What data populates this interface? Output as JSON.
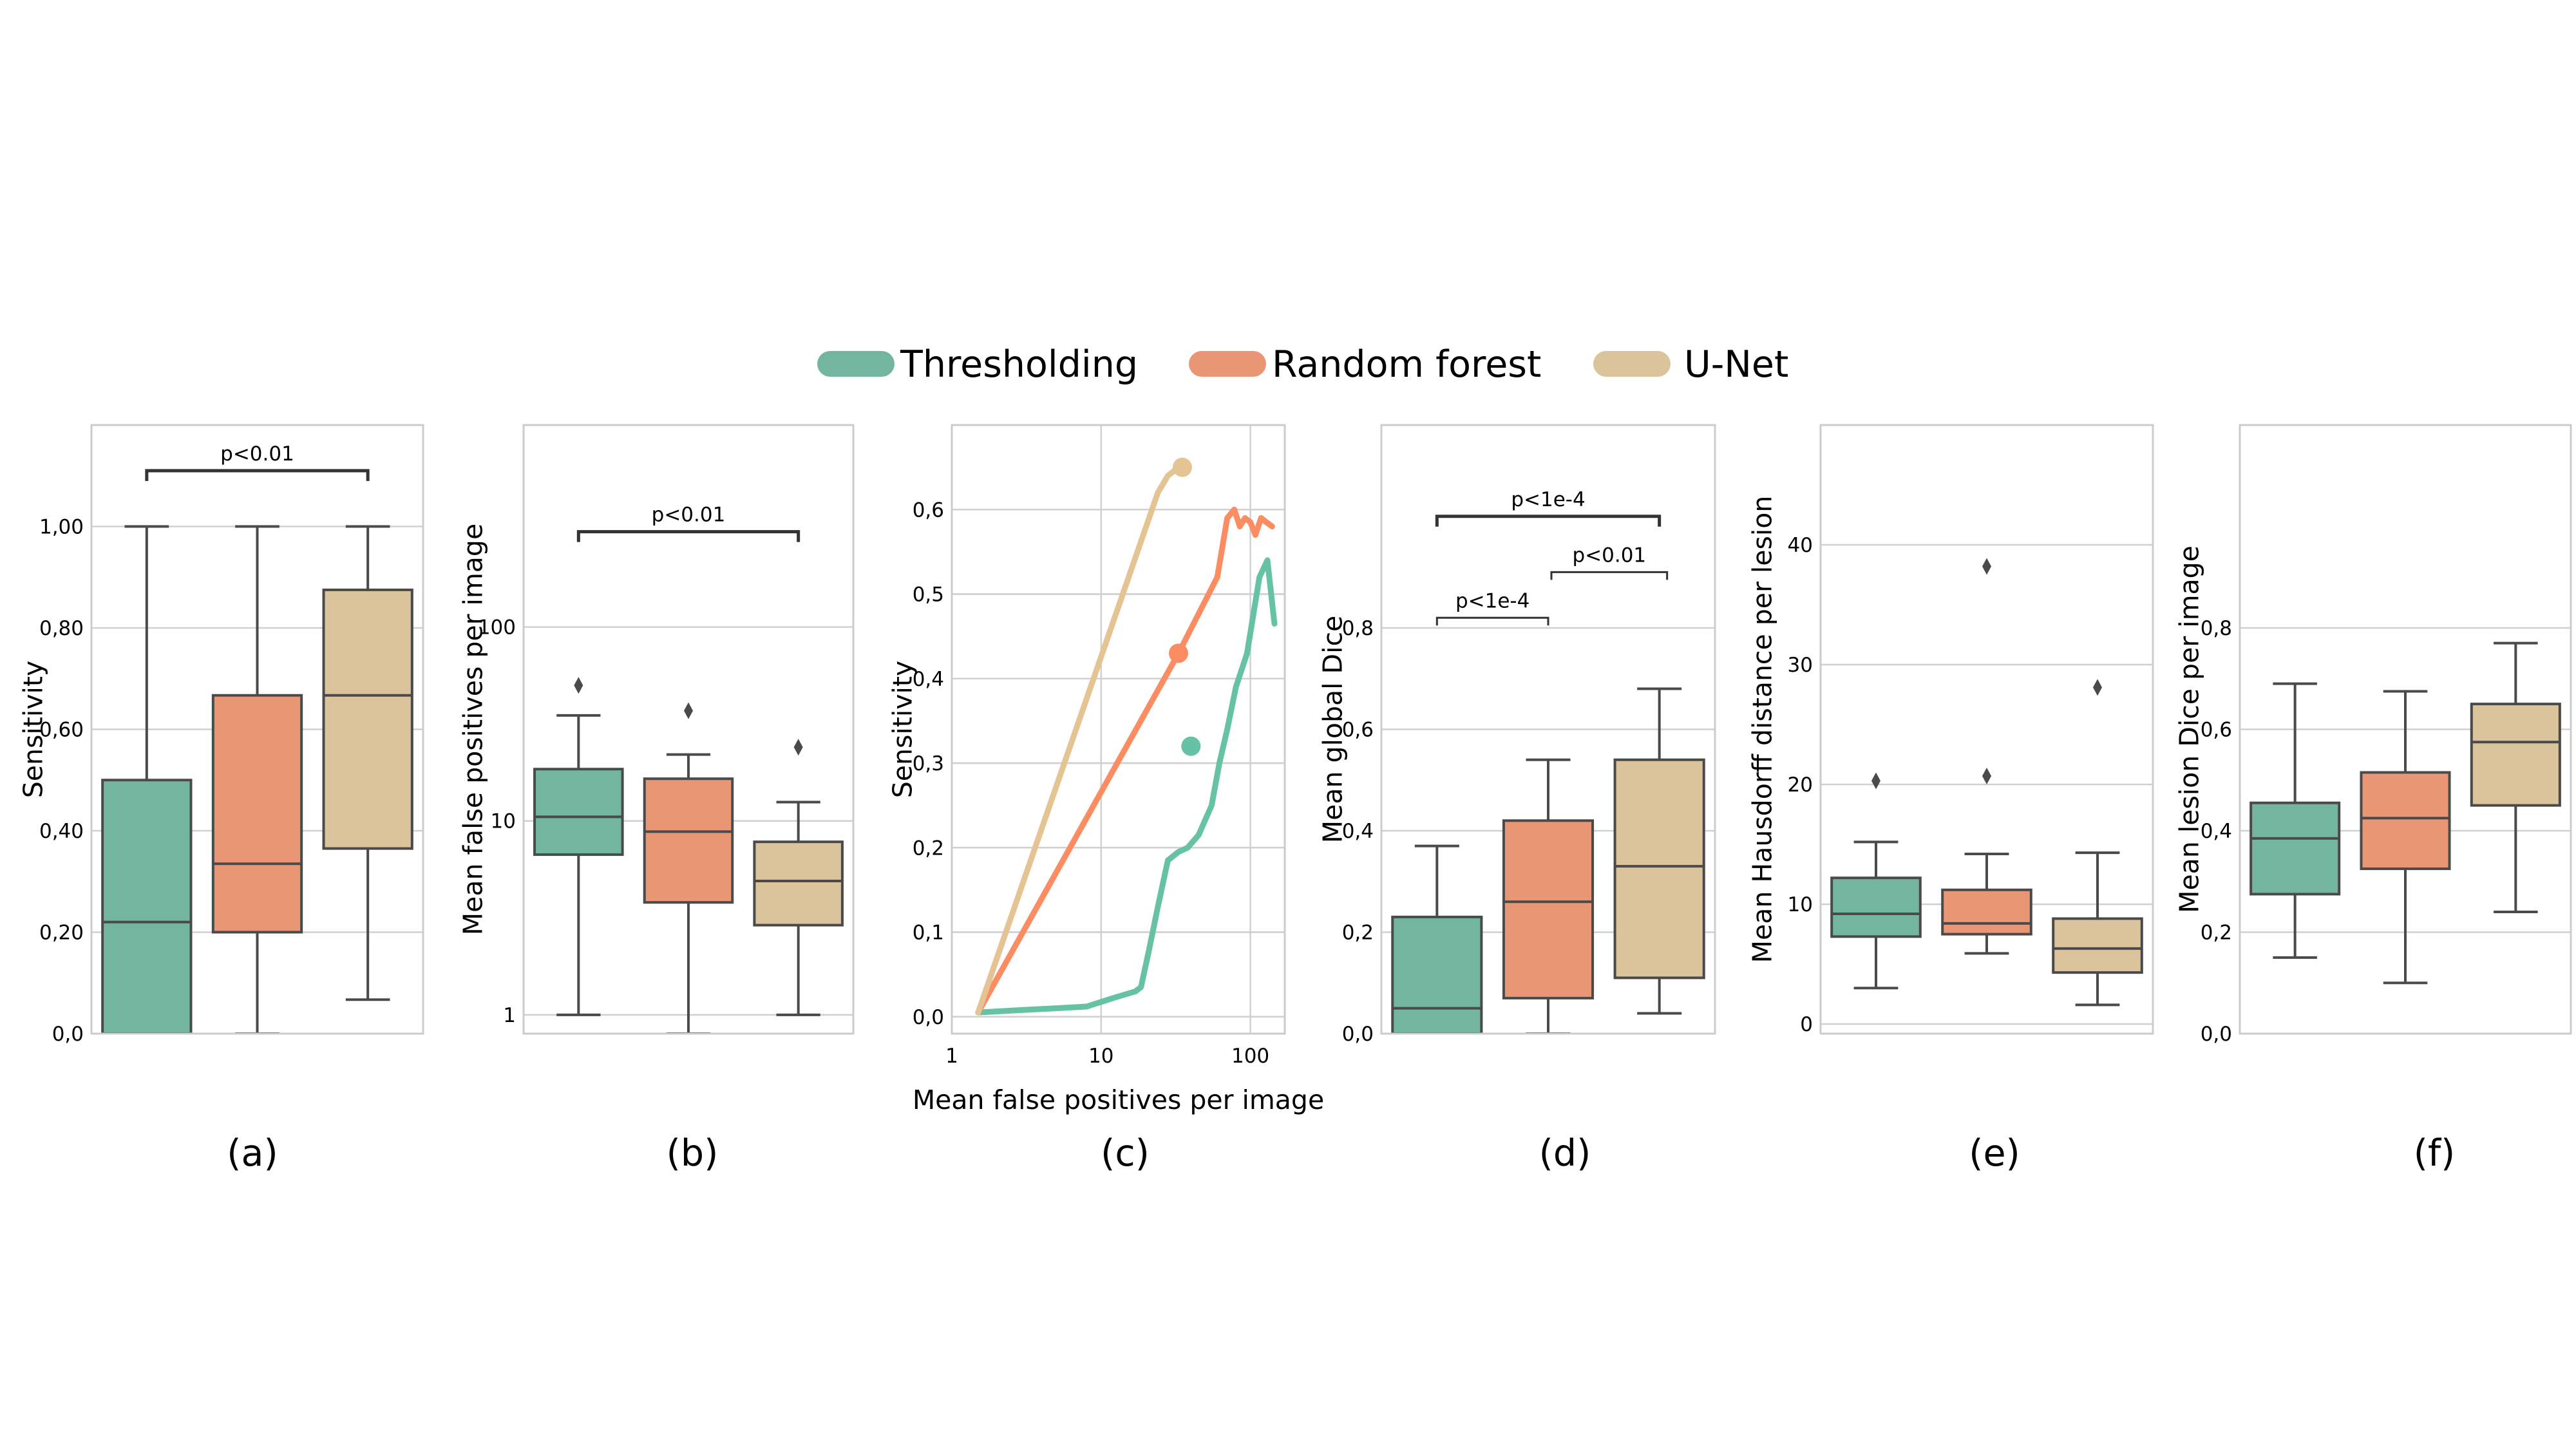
{
  "colors": {
    "Thresholding": "#72b6a0",
    "Random forest": "#e99675",
    "U-Net": "#dbc39b",
    "Thresholding_line": "#66c2a5",
    "Random forest_line": "#fc8d62",
    "U-Net_line": "#e5c494"
  },
  "legend": {
    "placement": "top-center",
    "entries": [
      "Thresholding",
      "Random forest",
      "U-Net"
    ]
  },
  "chart_data": [
    {
      "id": "a",
      "type": "box",
      "panel_label": "(a)",
      "ylabel": "Sensitivity",
      "ylim": [
        0.0,
        1.2
      ],
      "yscale": "linear",
      "yticks": [
        0.0,
        0.2,
        0.4,
        0.6,
        0.8,
        1.0
      ],
      "ytick_labels": [
        "0,0",
        "0,20",
        "0,40",
        "0,60",
        "0,80",
        "1,00"
      ],
      "grid": true,
      "boxes": [
        {
          "name": "Thresholding",
          "q1": 0.0,
          "median": 0.22,
          "q3": 0.5,
          "whislo": 0.0,
          "whishi": 1.0,
          "fliers": []
        },
        {
          "name": "Random forest",
          "q1": 0.2,
          "median": 0.335,
          "q3": 0.667,
          "whislo": 0.0,
          "whishi": 1.0,
          "fliers": []
        },
        {
          "name": "U-Net",
          "q1": 0.365,
          "median": 0.667,
          "q3": 0.875,
          "whislo": 0.067,
          "whishi": 1.0,
          "fliers": []
        }
      ],
      "annotations": [
        {
          "text": "p<0.01",
          "from": 0,
          "to": 2,
          "y": 1.11,
          "level": 0
        }
      ]
    },
    {
      "id": "b",
      "type": "box",
      "panel_label": "(b)",
      "ylabel": "Mean false positives per image",
      "ylim": [
        0.8,
        1100
      ],
      "yscale": "log",
      "yticks": [
        1,
        10,
        100
      ],
      "ytick_labels": [
        "1",
        "10",
        "100"
      ],
      "grid": true,
      "boxes": [
        {
          "name": "Thresholding",
          "q1": 6.7,
          "median": 10.5,
          "q3": 18.5,
          "whislo": 1.0,
          "whishi": 35,
          "fliers": [
            50
          ]
        },
        {
          "name": "Random forest",
          "q1": 3.8,
          "median": 8.8,
          "q3": 16.5,
          "whislo": 0.8,
          "whishi": 22,
          "fliers": [
            37
          ]
        },
        {
          "name": "U-Net",
          "q1": 2.9,
          "median": 4.9,
          "q3": 7.8,
          "whislo": 1.0,
          "whishi": 12.5,
          "fliers": [
            24
          ]
        }
      ],
      "annotations": [
        {
          "text": "p<0.01",
          "from": 0,
          "to": 2,
          "y": 310,
          "level": 0
        }
      ]
    },
    {
      "id": "c",
      "type": "line",
      "panel_label": "(c)",
      "ylabel": "Sensitivity",
      "xlabel": "Mean false positives per image",
      "xscale": "log",
      "xlim": [
        1.0,
        170
      ],
      "ylim": [
        -0.02,
        0.7
      ],
      "xticks": [
        1,
        10,
        100
      ],
      "xtick_labels": [
        "1",
        "10",
        "100"
      ],
      "yticks": [
        0.0,
        0.1,
        0.2,
        0.3,
        0.4,
        0.5,
        0.6
      ],
      "ytick_labels": [
        "0,0",
        "0,1",
        "0,2",
        "0,3",
        "0,4",
        "0,5",
        "0,6"
      ],
      "grid": true,
      "series": [
        {
          "name": "Thresholding",
          "x": [
            1.5,
            3,
            5,
            8,
            12,
            17,
            18.5,
            21,
            24,
            28,
            33,
            38,
            45,
            55,
            62,
            70,
            80,
            95,
            115,
            130,
            145
          ],
          "y": [
            0.005,
            0.008,
            0.01,
            0.012,
            0.022,
            0.03,
            0.035,
            0.08,
            0.13,
            0.185,
            0.195,
            0.2,
            0.215,
            0.25,
            0.3,
            0.34,
            0.39,
            0.43,
            0.52,
            0.54,
            0.465
          ],
          "marker": {
            "x": 40,
            "y": 0.32
          }
        },
        {
          "name": "Random forest",
          "x": [
            1.5,
            33,
            60,
            70,
            78,
            85,
            92,
            100,
            108,
            118,
            128,
            140
          ],
          "y": [
            0.005,
            0.43,
            0.52,
            0.59,
            0.6,
            0.58,
            0.59,
            0.585,
            0.57,
            0.59,
            0.585,
            0.58
          ],
          "marker": {
            "x": 33,
            "y": 0.43
          }
        },
        {
          "name": "U-Net",
          "x": [
            1.5,
            24,
            28,
            33,
            35
          ],
          "y": [
            0.005,
            0.62,
            0.64,
            0.65,
            0.65
          ],
          "marker": {
            "x": 35,
            "y": 0.65
          }
        }
      ]
    },
    {
      "id": "d",
      "type": "box",
      "panel_label": "(d)",
      "ylabel": "Mean global Dice",
      "ylim": [
        0.0,
        1.2
      ],
      "yscale": "linear",
      "yticks": [
        0.0,
        0.2,
        0.4,
        0.6,
        0.8
      ],
      "ytick_labels": [
        "0,0",
        "0,2",
        "0,4",
        "0,6",
        "0,8"
      ],
      "grid": true,
      "boxes": [
        {
          "name": "Thresholding",
          "q1": 0.0,
          "median": 0.05,
          "q3": 0.23,
          "whislo": 0.0,
          "whishi": 0.37,
          "fliers": []
        },
        {
          "name": "Random forest",
          "q1": 0.07,
          "median": 0.26,
          "q3": 0.42,
          "whislo": 0.0,
          "whishi": 0.54,
          "fliers": []
        },
        {
          "name": "U-Net",
          "q1": 0.11,
          "median": 0.33,
          "q3": 0.54,
          "whislo": 0.04,
          "whishi": 0.68,
          "fliers": []
        }
      ],
      "annotations": [
        {
          "text": "p<1e-4",
          "from": 0,
          "to": 2,
          "y": 1.02,
          "level": 0
        },
        {
          "text": "p<0.01",
          "from": 1,
          "to": 2,
          "y": 0.91,
          "level": 1
        },
        {
          "text": "p<1e-4",
          "from": 0,
          "to": 1,
          "y": 0.82,
          "level": 1
        }
      ]
    },
    {
      "id": "e",
      "type": "box",
      "panel_label": "(e)",
      "ylabel": "Mean Hausdorff distance per lesion",
      "ylim": [
        -0.8,
        50
      ],
      "yscale": "linear",
      "yticks": [
        0,
        10,
        20,
        30,
        40
      ],
      "ytick_labels": [
        "0",
        "10",
        "20",
        "30",
        "40"
      ],
      "grid": true,
      "boxes": [
        {
          "name": "Thresholding",
          "q1": 7.3,
          "median": 9.2,
          "q3": 12.2,
          "whislo": 3.0,
          "whishi": 15.2,
          "fliers": [
            20.3
          ]
        },
        {
          "name": "Random forest",
          "q1": 7.5,
          "median": 8.4,
          "q3": 11.2,
          "whislo": 5.9,
          "whishi": 14.2,
          "fliers": [
            20.7,
            38.2
          ]
        },
        {
          "name": "U-Net",
          "q1": 4.3,
          "median": 6.3,
          "q3": 8.8,
          "whislo": 1.6,
          "whishi": 14.3,
          "fliers": [
            28.1
          ]
        }
      ],
      "annotations": []
    },
    {
      "id": "f",
      "type": "box",
      "panel_label": "(f)",
      "ylabel": "Mean lesion Dice per image",
      "ylim": [
        0.0,
        1.2
      ],
      "yscale": "linear",
      "yticks": [
        0.0,
        0.2,
        0.4,
        0.6,
        0.8
      ],
      "ytick_labels": [
        "0,0",
        "0,2",
        "0,4",
        "0,6",
        "0,8"
      ],
      "grid": true,
      "boxes": [
        {
          "name": "Thresholding",
          "q1": 0.275,
          "median": 0.385,
          "q3": 0.455,
          "whislo": 0.15,
          "whishi": 0.69,
          "fliers": []
        },
        {
          "name": "Random forest",
          "q1": 0.325,
          "median": 0.425,
          "q3": 0.515,
          "whislo": 0.1,
          "whishi": 0.675,
          "fliers": []
        },
        {
          "name": "U-Net",
          "q1": 0.45,
          "median": 0.575,
          "q3": 0.65,
          "whislo": 0.24,
          "whishi": 0.77,
          "fliers": []
        }
      ],
      "annotations": []
    }
  ]
}
